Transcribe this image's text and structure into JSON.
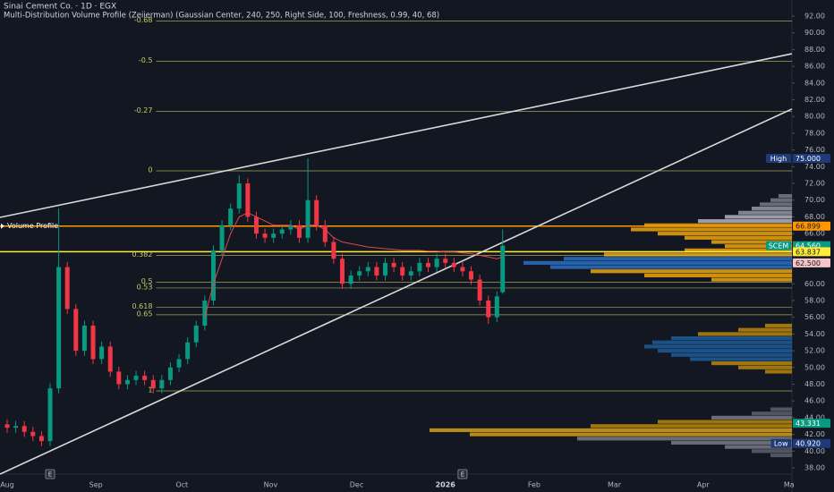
{
  "chart_data": {
    "type": "candlestick",
    "title": "Sinai Cement Co. · 1D · EGX",
    "subtitle": "Multi-Distribution Volume Profile (Zeiierman) (Gaussian Center, 240, 250, Right Side, 100, Freshness, 0.99, 40, 68)",
    "profile_label": "Volume Profile",
    "earnings_marker": "E",
    "earnings_x": [
      15,
      159
    ],
    "colors": {
      "up": "#089981",
      "down": "#f23645",
      "ma": "#e0464e",
      "fib": "#c8c864",
      "trend": "#d9d9d9"
    },
    "x": [
      0,
      3,
      6,
      9,
      12,
      15,
      18,
      21,
      24,
      27,
      30,
      33,
      36,
      39,
      42,
      45,
      48,
      51,
      54,
      57,
      60,
      63,
      66,
      69,
      72,
      75,
      78,
      81,
      84,
      87,
      90,
      93,
      96,
      99,
      102,
      105,
      108,
      111,
      114,
      117,
      120,
      123,
      126,
      129,
      132,
      135,
      138,
      141,
      144,
      147,
      150,
      153,
      156,
      159,
      162,
      165,
      168,
      171,
      173
    ],
    "open": [
      43.2,
      42.8,
      43.0,
      42.3,
      41.8,
      41.2,
      47.5,
      62,
      57,
      52,
      55,
      51,
      52.5,
      49.5,
      48,
      48.5,
      49,
      48.5,
      47.5,
      48.5,
      50,
      51,
      53,
      55,
      58,
      64,
      67,
      69,
      72,
      68,
      66,
      65.5,
      66,
      66.5,
      67,
      65.5,
      70,
      67,
      65,
      63,
      60,
      61,
      61.5,
      62,
      61,
      62.5,
      62,
      61,
      61.5,
      62.5,
      62,
      63,
      62.5,
      62,
      61.5,
      60.5,
      58,
      56,
      59
    ],
    "high": [
      43.8,
      43.6,
      43.6,
      42.9,
      42.4,
      48.1,
      69,
      62.6,
      57.6,
      55.6,
      55.6,
      53.1,
      53.1,
      50.1,
      49.1,
      49.6,
      49.6,
      49.1,
      49.1,
      50.6,
      51.6,
      53.6,
      55.6,
      58.6,
      64.6,
      67.6,
      69.6,
      73,
      72.6,
      68.6,
      66.6,
      66.6,
      67.1,
      67.6,
      67.6,
      75,
      70.6,
      67.6,
      65.6,
      63.6,
      61.6,
      62.1,
      62.6,
      62.6,
      63.1,
      63.1,
      62.6,
      62.1,
      63.1,
      63.1,
      63.6,
      63.6,
      63.1,
      62.6,
      62.1,
      61.1,
      58.6,
      59.1,
      66.5
    ],
    "low": [
      42.2,
      42.2,
      41.7,
      41.2,
      40.6,
      40.6,
      46.9,
      56.4,
      51.4,
      51.4,
      50.4,
      50.4,
      48.9,
      47.4,
      47.4,
      47.9,
      47.9,
      46.9,
      46.9,
      47.9,
      49.4,
      50.4,
      52.4,
      54.4,
      57.4,
      63.4,
      66.4,
      68.4,
      67.4,
      65.4,
      64.9,
      64.9,
      65.4,
      65.9,
      64.9,
      64.9,
      66.4,
      64.4,
      62.4,
      59.4,
      59.4,
      60.4,
      60.9,
      60.4,
      60.4,
      61.4,
      60.4,
      60.4,
      60.9,
      61.4,
      61.4,
      61.9,
      61.4,
      60.9,
      59.9,
      57.4,
      55.2,
      55.4,
      58.8
    ],
    "close": [
      42.8,
      43.0,
      42.3,
      41.8,
      41.2,
      47.5,
      62,
      57,
      52,
      55,
      51,
      52.5,
      49.5,
      48,
      48.5,
      49,
      48.5,
      47.5,
      48.5,
      50,
      51,
      53,
      55,
      58,
      64,
      67,
      69,
      72,
      68,
      66,
      65.5,
      66,
      66.5,
      67,
      65.5,
      70,
      67,
      65,
      63,
      60,
      61,
      61.5,
      62,
      61,
      62.5,
      62,
      61,
      61.5,
      62.5,
      62,
      63,
      62.5,
      62,
      61.5,
      60.5,
      58,
      56,
      58.5,
      64.56
    ],
    "ma": [
      null,
      null,
      null,
      null,
      null,
      null,
      null,
      null,
      null,
      null,
      null,
      null,
      null,
      null,
      null,
      null,
      null,
      null,
      null,
      null,
      null,
      null,
      null,
      56,
      60,
      63,
      66,
      68,
      68.5,
      68,
      67.5,
      67,
      67,
      67,
      66.5,
      67,
      67,
      66.5,
      65.5,
      65,
      64.8,
      64.6,
      64.4,
      64.3,
      64.2,
      64.1,
      64,
      64,
      64,
      63.9,
      63.9,
      63.8,
      63.8,
      63.7,
      63.6,
      63.4,
      63.2,
      63,
      63.2
    ],
    "xlim": [
      -2.5,
      274
    ],
    "xticks": [
      {
        "value": 0,
        "label": "Aug"
      },
      {
        "value": 31,
        "label": "Sep"
      },
      {
        "value": 61,
        "label": "Oct"
      },
      {
        "value": 92,
        "label": "Nov"
      },
      {
        "value": 122,
        "label": "Dec"
      },
      {
        "value": 153,
        "label": "2026"
      },
      {
        "value": 184,
        "label": "Feb"
      },
      {
        "value": 212,
        "label": "Mar"
      },
      {
        "value": 243,
        "label": "Apr"
      },
      {
        "value": 273,
        "label": "Ma"
      }
    ],
    "ylim": [
      38,
      92
    ],
    "yticks": [
      {
        "value": 92,
        "label": "92.00"
      },
      {
        "value": 90,
        "label": "90.00"
      },
      {
        "value": 88,
        "label": "88.00"
      },
      {
        "value": 86,
        "label": "86.00"
      },
      {
        "value": 84,
        "label": "84.00"
      },
      {
        "value": 82,
        "label": "82.00"
      },
      {
        "value": 80,
        "label": "80.00"
      },
      {
        "value": 78,
        "label": "78.00"
      },
      {
        "value": 76,
        "label": "76.00"
      },
      {
        "value": 74,
        "label": "74.00"
      },
      {
        "value": 72,
        "label": "72.00"
      },
      {
        "value": 70,
        "label": "70.00"
      },
      {
        "value": 68,
        "label": "68.00"
      },
      {
        "value": 66,
        "label": "66.00"
      },
      {
        "value": 60,
        "label": "60.00"
      },
      {
        "value": 58,
        "label": "58.00"
      },
      {
        "value": 56,
        "label": "56.00"
      },
      {
        "value": 54,
        "label": "54.00"
      },
      {
        "value": 52,
        "label": "52.00"
      },
      {
        "value": 50,
        "label": "50.00"
      },
      {
        "value": 48,
        "label": "48.00"
      },
      {
        "value": 46,
        "label": "46.00"
      },
      {
        "value": 44,
        "label": "44.00"
      },
      {
        "value": 42,
        "label": "42.00"
      },
      {
        "value": 40,
        "label": "40.00"
      },
      {
        "value": 38,
        "label": "38.00"
      }
    ],
    "fib_start": 52,
    "fib": [
      {
        "level": "-0.68",
        "price": 91.4
      },
      {
        "level": "-0.5",
        "price": 86.6
      },
      {
        "level": "-0.27",
        "price": 80.6
      },
      {
        "level": "0",
        "price": 73.5
      },
      {
        "level": "0.382",
        "price": 63.4
      },
      {
        "level": "0.5",
        "price": 60.2
      },
      {
        "level": "0.53",
        "price": 59.5
      },
      {
        "level": "0.618",
        "price": 57.2
      },
      {
        "level": "0.65",
        "price": 56.3
      },
      {
        "level": "1",
        "price": 47.2
      }
    ],
    "hlines": [
      {
        "price": 66.899,
        "color": "#ff9800"
      },
      {
        "price": 63.837,
        "color": "#ffeb3b"
      }
    ],
    "trendlines": [
      {
        "start": [
          -2.5,
          67.94
        ],
        "end": [
          274,
          87.5
        ]
      },
      {
        "start": [
          -2.5,
          37.25
        ],
        "end": [
          274,
          80.9
        ]
      }
    ],
    "badges": [
      {
        "tag": "High",
        "price": 75,
        "text": "75.000",
        "bg": "#1e3a78",
        "fg": "#ffffff"
      },
      {
        "price": 66.899,
        "text": "66.899",
        "bg": "#ff9800",
        "fg": "#131722"
      },
      {
        "tag": "SCEM",
        "price": 64.56,
        "text": "64.560",
        "bg": "#089981",
        "fg": "#ffffff"
      },
      {
        "price": 63.837,
        "text": "63.837",
        "bg": "#ffeb3b",
        "fg": "#131722"
      },
      {
        "price": 62.5,
        "text": "62.500",
        "bg": "#f7c5c5",
        "fg": "#131722"
      },
      {
        "price": 43.331,
        "text": "43.331",
        "bg": "#089981",
        "fg": "#ffffff"
      },
      {
        "tag": "Low",
        "price": 40.92,
        "text": "40.920",
        "bg": "#1e3a78",
        "fg": "#ffffff"
      }
    ],
    "profile": {
      "prices": [
        70.5,
        70,
        69.5,
        69,
        68.5,
        68,
        67.5,
        67,
        66.5,
        66,
        65.5,
        65,
        64.5,
        64,
        63.5,
        63,
        62.5,
        62,
        61.5,
        61,
        60.5,
        55,
        54.5,
        54,
        53.5,
        53,
        52.5,
        52,
        51.5,
        51,
        50.5,
        50,
        49.5,
        45,
        44.5,
        44,
        43.5,
        43,
        42.5,
        42,
        41.5,
        41,
        40.5,
        40,
        39.5
      ],
      "volumes": [
        5,
        8,
        12,
        15,
        20,
        25,
        35,
        55,
        60,
        50,
        40,
        30,
        25,
        40,
        70,
        85,
        100,
        90,
        75,
        55,
        30,
        10,
        20,
        35,
        45,
        52,
        55,
        50,
        45,
        38,
        30,
        20,
        10,
        8,
        15,
        30,
        50,
        75,
        135,
        120,
        80,
        45,
        25,
        15,
        8
      ],
      "colors": [
        "#787b86",
        "#787b86",
        "#787b86",
        "#9598a1",
        "#9598a1",
        "#b2b5be",
        "#b2b5be",
        "#f0a30a",
        "#f0a30a",
        "#f0a30a",
        "#f0a30a",
        "#f0a30a",
        "#f0a30a",
        "#f0a30a",
        "#f0a30a",
        "#2a6fc4",
        "#2a6fc4",
        "#2a6fc4",
        "#f0a30a",
        "#f0a30a",
        "#f0a30a",
        "#b8860b",
        "#b8860b",
        "#b8860b",
        "#1f5c99",
        "#1f5c99",
        "#1f5c99",
        "#1f5c99",
        "#1f5c99",
        "#1f5c99",
        "#b8860b",
        "#b8860b",
        "#b8860b",
        "#5d606b",
        "#5d606b",
        "#787b86",
        "#b8860b",
        "#b8860b",
        "#d4a017",
        "#d4a017",
        "#787b86",
        "#787b86",
        "#787b86",
        "#5d606b",
        "#5d606b"
      ]
    }
  }
}
